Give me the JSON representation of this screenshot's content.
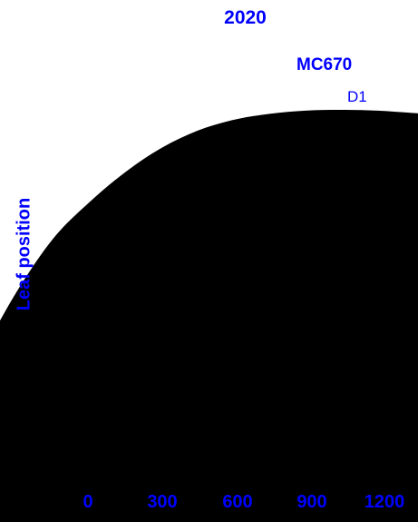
{
  "chart_data": {
    "type": "area",
    "title": "2020",
    "subtitle": "MC670",
    "series": [
      {
        "name": "D1",
        "color": "#000000",
        "x": [
          -100,
          0,
          100,
          200,
          300,
          400,
          500,
          600,
          700,
          800,
          900,
          1000,
          1100,
          1200,
          1300
        ],
        "y": [
          2.5,
          4.2,
          5.8,
          7.1,
          8.0,
          8.75,
          9.35,
          9.78,
          10.05,
          10.2,
          10.28,
          10.3,
          10.28,
          10.22,
          10.15
        ]
      }
    ],
    "ylabel": "Leaf position",
    "xlabel": "",
    "x_ticks": [
      "0",
      "300",
      "600",
      "900",
      "1200"
    ],
    "x_tick_values": [
      0,
      300,
      600,
      900,
      1200
    ],
    "xlim": [
      -220,
      1300
    ],
    "ylim": [
      0,
      13
    ],
    "label_color": "#0000ff",
    "grid": false
  }
}
